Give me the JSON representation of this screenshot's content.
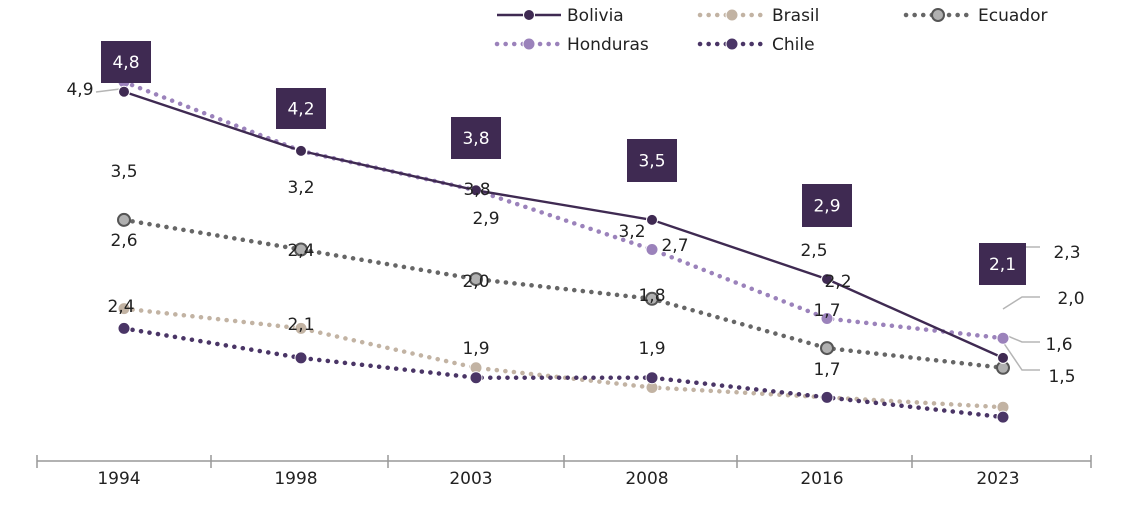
{
  "chart_data": {
    "type": "line",
    "title": "",
    "xlabel": "",
    "ylabel": "",
    "grid": false,
    "legend_placement": "top-right",
    "categories": [
      "1994",
      "1998",
      "2003",
      "2008",
      "2016",
      "2023"
    ],
    "ylim": [
      0,
      6
    ],
    "series": [
      {
        "name": "Bolivia",
        "color": "#3f2a52",
        "style": "solid",
        "marker_fill": "#3f2a52",
        "values": [
          4.8,
          4.2,
          3.8,
          3.5,
          2.9,
          2.1
        ],
        "labels": [
          "4,8",
          "4,2",
          "3,8",
          "3,5",
          "2,9",
          "2,1"
        ]
      },
      {
        "name": "Honduras",
        "color": "#9b82bb",
        "style": "dotted",
        "marker_fill": "#9b82bb",
        "values": [
          4.9,
          4.2,
          3.8,
          3.2,
          2.5,
          2.3
        ],
        "labels": [
          "4,9",
          "",
          "3,8",
          "3,2",
          "2,5",
          "2,3"
        ]
      },
      {
        "name": "Brasil",
        "color": "#c2b3a3",
        "style": "dotted",
        "marker_fill": "#c2b3a3",
        "values": [
          2.6,
          2.4,
          2.0,
          1.8,
          1.7,
          1.6
        ],
        "labels": [
          "2,6",
          "2,4",
          "2,0",
          "1,8",
          "1,7",
          "1,6"
        ]
      },
      {
        "name": "Ecuador",
        "color": "#666666",
        "style": "dotted",
        "marker_fill": "#b0b0b0",
        "values": [
          3.5,
          3.2,
          2.9,
          2.7,
          2.2,
          2.0
        ],
        "labels": [
          "3,5",
          "3,2",
          "2,9",
          "2,7",
          "2,2",
          "2,0"
        ]
      },
      {
        "name": "Chile",
        "color": "#4a3566",
        "style": "dotted",
        "marker_fill": "#4a3566",
        "values": [
          2.4,
          2.1,
          1.9,
          1.9,
          1.7,
          1.5
        ],
        "labels": [
          "2,4",
          "2,1",
          "1,9",
          "1,9",
          "1,7",
          "1,5"
        ]
      }
    ]
  }
}
